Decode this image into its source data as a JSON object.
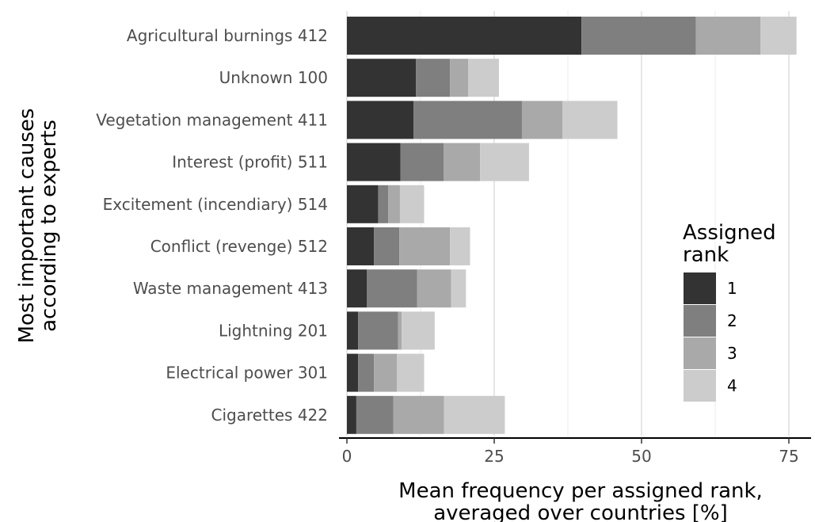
{
  "chart_data": {
    "type": "bar",
    "orientation": "horizontal",
    "stacked": true,
    "xlabel_lines": [
      "Mean frequency per assigned rank,",
      "averaged over countries [%]"
    ],
    "ylabel_lines": [
      "Most important causes",
      "according to experts"
    ],
    "xlim": [
      0,
      76
    ],
    "xticks": [
      0,
      25,
      50,
      75
    ],
    "grid": "vertical",
    "legend": {
      "title_lines": [
        "Assigned",
        "rank"
      ],
      "placement": "right",
      "entries": [
        "1",
        "2",
        "3",
        "4"
      ]
    },
    "categories": [
      {
        "name": "Agricultural burnings",
        "code": "412"
      },
      {
        "name": "Unknown",
        "code": "100"
      },
      {
        "name": "Vegetation management",
        "code": "411"
      },
      {
        "name": "Interest (profit)",
        "code": "511"
      },
      {
        "name": "Excitement (incendiary)",
        "code": "514"
      },
      {
        "name": "Conflict (revenge)",
        "code": "512"
      },
      {
        "name": "Waste management",
        "code": "413"
      },
      {
        "name": "Lightning",
        "code": "201"
      },
      {
        "name": "Electrical power",
        "code": "301"
      },
      {
        "name": "Cigarettes",
        "code": "422"
      }
    ],
    "series": [
      {
        "name": "1",
        "color": "#333333",
        "values": [
          39.8,
          11.7,
          11.3,
          9.1,
          5.3,
          4.6,
          3.4,
          1.9,
          1.9,
          1.6
        ]
      },
      {
        "name": "2",
        "color": "#7f7f7f",
        "values": [
          19.4,
          5.8,
          18.4,
          7.3,
          1.7,
          4.3,
          8.5,
          6.8,
          2.7,
          6.3
        ]
      },
      {
        "name": "3",
        "color": "#a9a9a9",
        "values": [
          11.0,
          3.1,
          6.9,
          6.2,
          2.0,
          8.6,
          5.8,
          0.6,
          3.9,
          8.6
        ]
      },
      {
        "name": "4",
        "color": "#cccccc",
        "values": [
          6.1,
          5.2,
          9.3,
          8.3,
          4.1,
          3.4,
          2.5,
          5.6,
          4.6,
          10.3
        ]
      }
    ]
  }
}
